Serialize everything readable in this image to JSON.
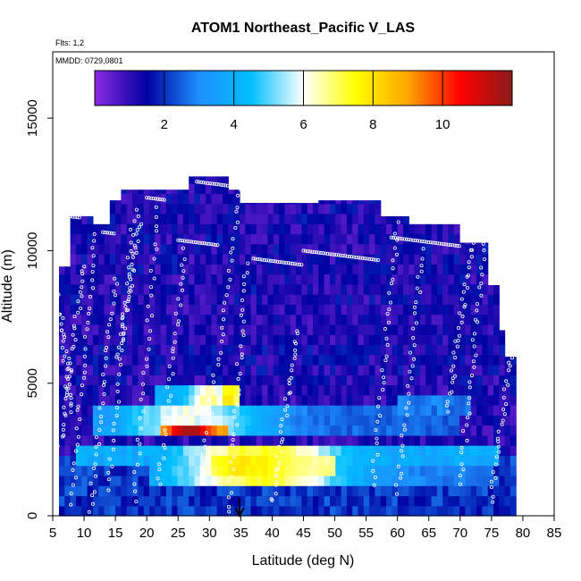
{
  "chart_data": {
    "type": "heatmap",
    "title": "ATOM1 Northeast_Pacific V_LAS",
    "flights_label": "Flts: 1,2",
    "dates_label": "MMDD: 0729,0801",
    "xlabel": "Latitude (deg N)",
    "ylabel": "Altitude (m)",
    "xlim": [
      5,
      85
    ],
    "ylim": [
      0,
      17500
    ],
    "x_ticks": [
      "5",
      "10",
      "15",
      "20",
      "25",
      "30",
      "35",
      "40",
      "45",
      "50",
      "55",
      "60",
      "65",
      "70",
      "75",
      "80",
      "85"
    ],
    "y_ticks": [
      "0",
      "5000",
      "10000",
      "15000"
    ],
    "colorbar": {
      "range": [
        0,
        12
      ],
      "ticks": [
        "2",
        "4",
        "6",
        "8",
        "10"
      ],
      "colors": [
        "#8a2be2",
        "#0000a0",
        "#1e90ff",
        "#00bfff",
        "#ffffff",
        "#ffff00",
        "#ffa500",
        "#ff0000",
        "#8b1a1a"
      ]
    },
    "marker_latitude": 34.8,
    "grid": false,
    "legend": "colorbar top"
  }
}
